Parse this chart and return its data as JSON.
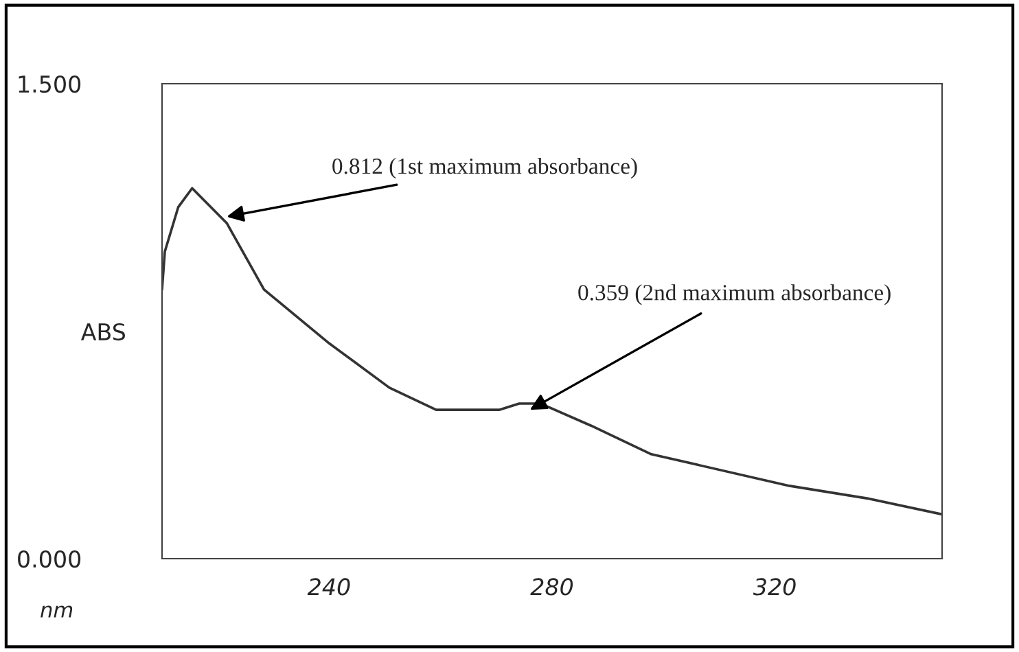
{
  "chart_data": {
    "type": "line",
    "xlabel": "nm",
    "ylabel": "ABS",
    "x": [
      210,
      210.5,
      212.9,
      215.4,
      221.6,
      228.3,
      240,
      250.8,
      259.2,
      267.5,
      270.5,
      274.1,
      277.9,
      287,
      297.8,
      322.6,
      336.7,
      350
    ],
    "series": [
      {
        "color": "#333333",
        "values": [
          0.85,
          0.97,
          1.11,
          1.17,
          1.06,
          0.85,
          0.68,
          0.54,
          0.47,
          0.47,
          0.47,
          0.49,
          0.49,
          0.42,
          0.33,
          0.23,
          0.19,
          0.14
        ]
      }
    ],
    "xlim": [
      210,
      350
    ],
    "xticks": [
      240,
      280,
      320
    ],
    "ylim": [
      0,
      1.5
    ],
    "yticks": [
      {
        "value": 0,
        "label": "0.000"
      },
      {
        "value": 1.5,
        "label": "1.500"
      }
    ],
    "grid": false,
    "legend": false,
    "marker": "none",
    "line_style": "solid",
    "annotations": [
      {
        "text": "0.812 (1st maximum absorbance)",
        "x": 221.6,
        "y": 1.08
      },
      {
        "text": "0.359 (2nd maximum absorbance)",
        "x": 276,
        "y": 0.47
      }
    ]
  }
}
